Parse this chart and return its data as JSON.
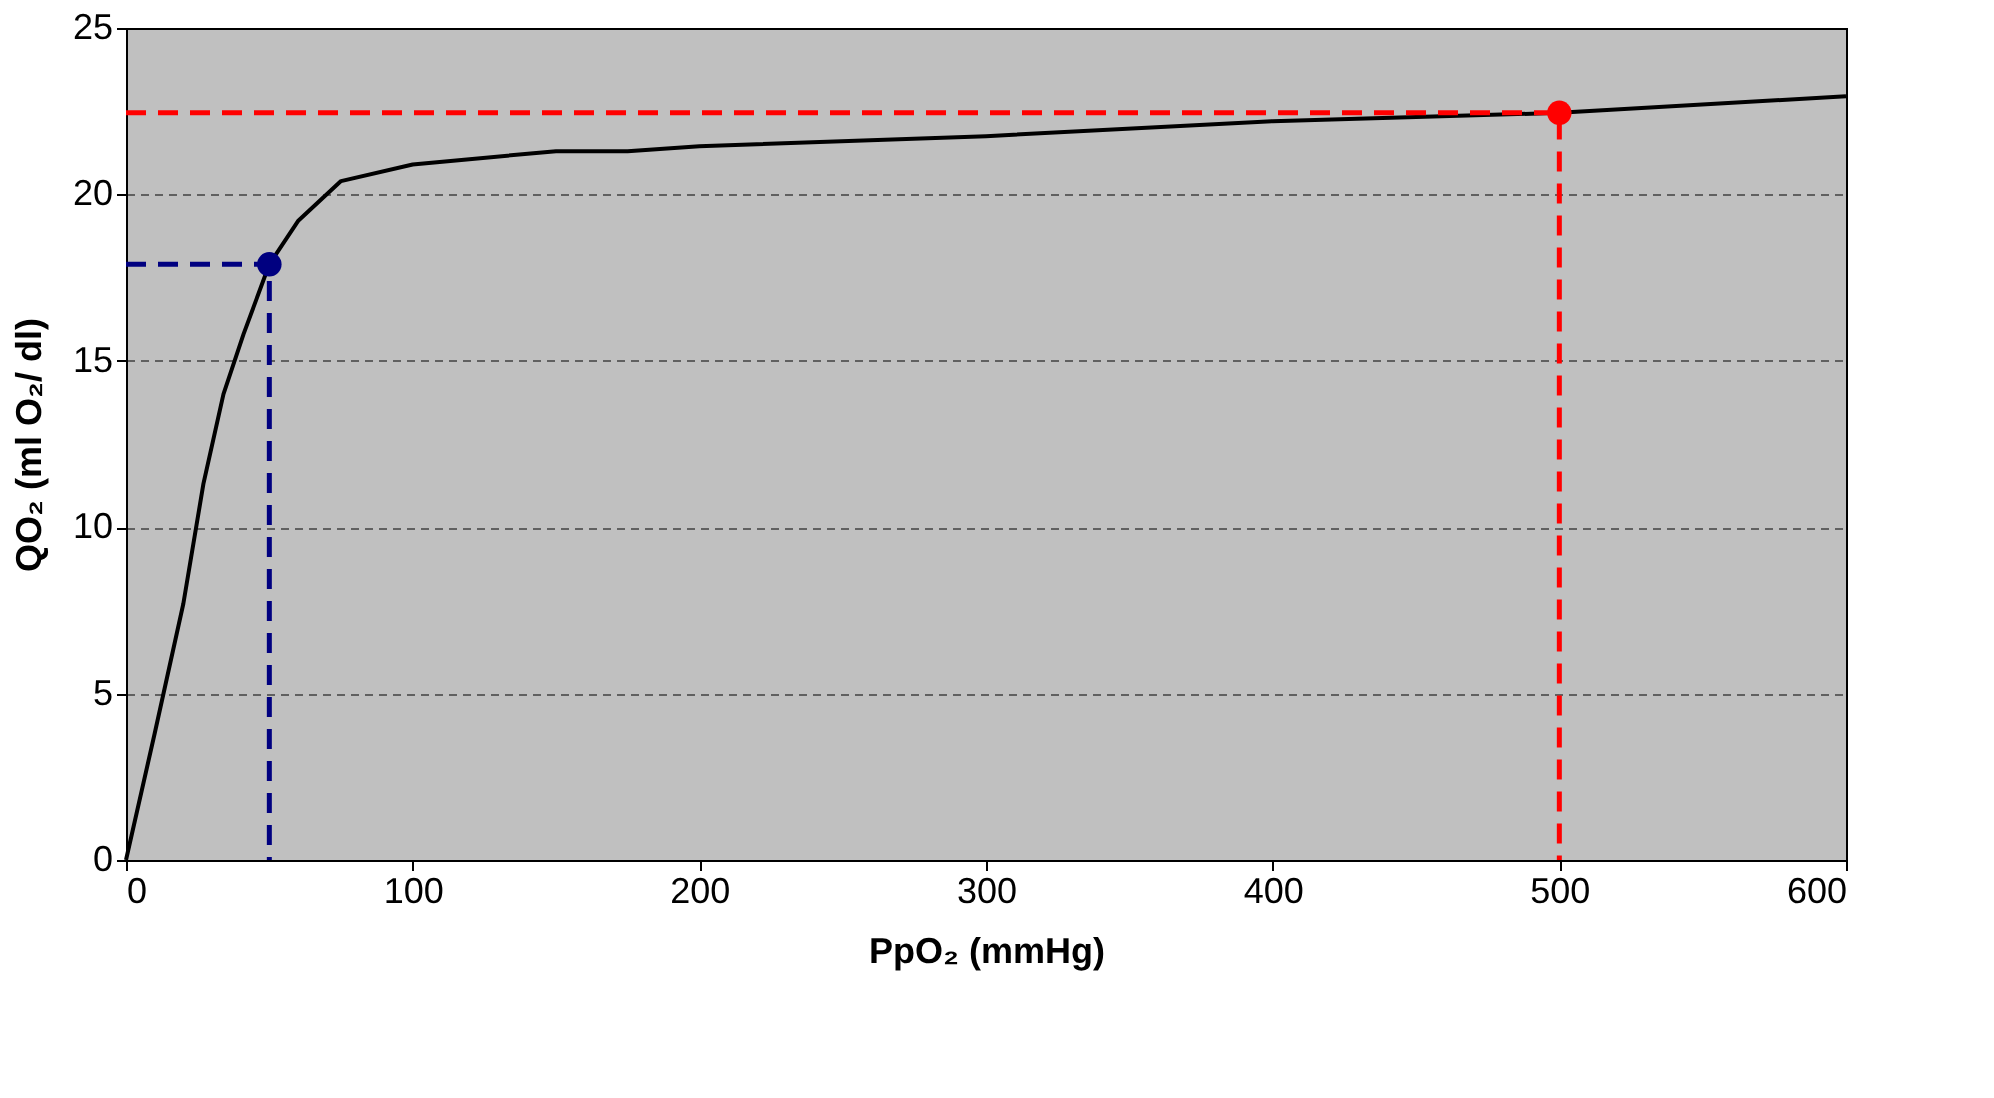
{
  "chart_data": {
    "type": "line",
    "xlabel": "PpO₂ (mmHg)",
    "ylabel": "QO₂ (ml O₂/ dl)",
    "xlim": [
      0,
      600
    ],
    "ylim": [
      0,
      25
    ],
    "xticks": [
      0,
      100,
      200,
      300,
      400,
      500,
      600
    ],
    "yticks": [
      0,
      5,
      10,
      15,
      20,
      25
    ],
    "grid": "y",
    "series": [
      {
        "color": "#000000",
        "line_style": "solid",
        "marker": "none",
        "x": [
          0,
          10,
          20,
          27,
          34,
          41,
          50,
          60,
          75,
          100,
          150,
          175,
          200,
          300,
          400,
          500,
          600
        ],
        "values": [
          0,
          3.8,
          7.7,
          11.3,
          14,
          15.8,
          17.9,
          19.2,
          20.4,
          20.9,
          21.3,
          21.3,
          21.45,
          21.75,
          22.2,
          22.45,
          22.95
        ]
      },
      {
        "color": "#000080",
        "line_style": "dashed",
        "marker": "none",
        "x": [
          0,
          50,
          50
        ],
        "values": [
          17.9,
          17.9,
          0
        ]
      },
      {
        "color": "#ff0000",
        "line_style": "dashed",
        "marker": "none",
        "x": [
          0,
          500,
          500
        ],
        "values": [
          22.45,
          22.45,
          0
        ]
      },
      {
        "type": "scatter",
        "color": "#000080",
        "marker": "circle",
        "x": [
          50
        ],
        "values": [
          17.9
        ]
      },
      {
        "type": "scatter",
        "color": "#ff0000",
        "marker": "circle",
        "x": [
          500
        ],
        "values": [
          22.45
        ]
      }
    ]
  }
}
